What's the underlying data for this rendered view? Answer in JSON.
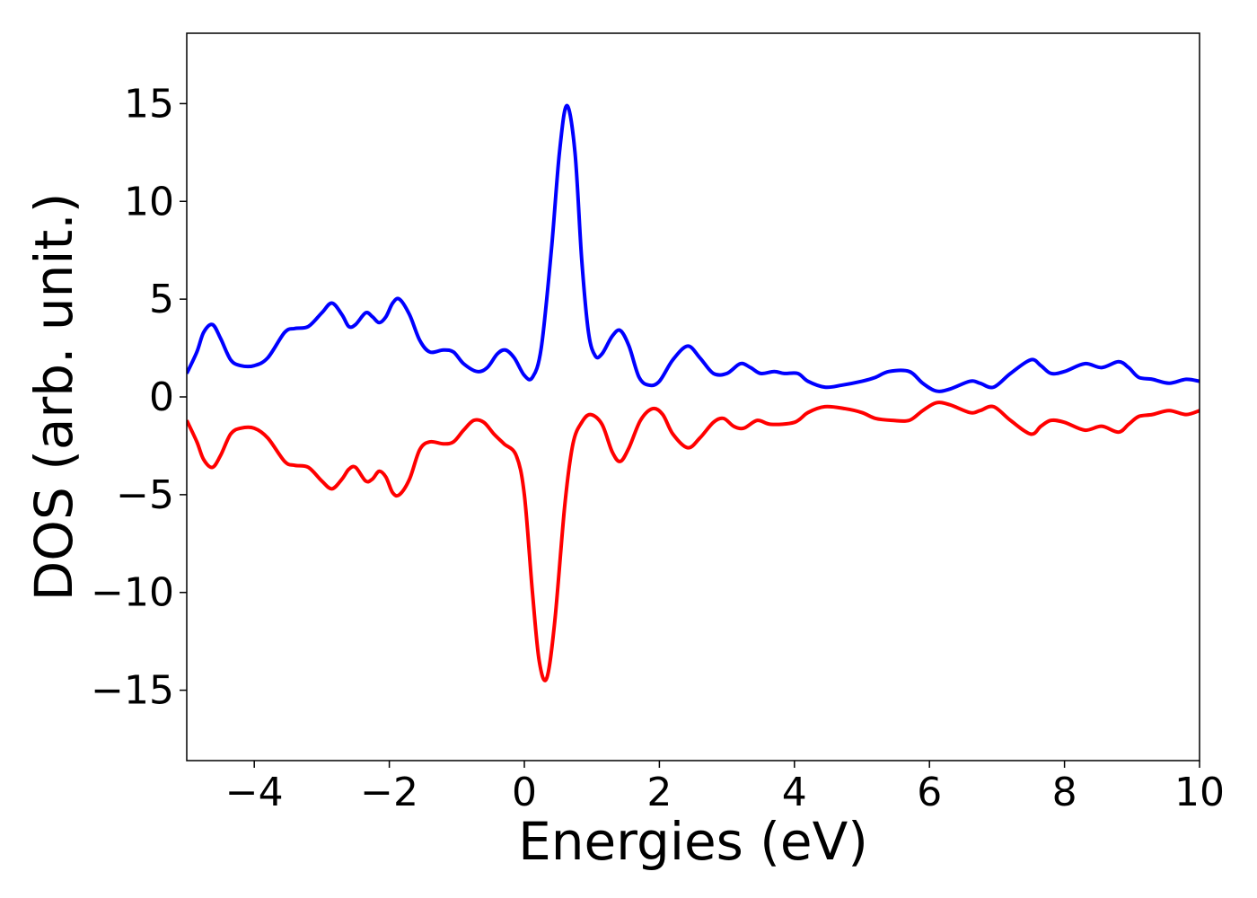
{
  "chart_data": {
    "type": "line",
    "title": "",
    "xlabel": "Energies (eV)",
    "ylabel": "DOS (arb. unit.)",
    "xlim": [
      -5,
      10
    ],
    "ylim": [
      -18.6,
      18.6
    ],
    "grid": false,
    "legend": "none",
    "x_ticks": [
      -4,
      -2,
      0,
      2,
      4,
      6,
      8,
      10
    ],
    "x_tick_labels": [
      "−4",
      "−2",
      "0",
      "2",
      "4",
      "6",
      "8",
      "10"
    ],
    "y_ticks": [
      -15,
      -10,
      -5,
      0,
      5,
      10,
      15
    ],
    "y_tick_labels": [
      "−15",
      "−10",
      "−5",
      "0",
      "5",
      "10",
      "15"
    ],
    "series": [
      {
        "color": "#0000ff",
        "points": [
          [
            -5.0,
            1.2
          ],
          [
            -4.85,
            2.3
          ],
          [
            -4.75,
            3.3
          ],
          [
            -4.62,
            3.7
          ],
          [
            -4.5,
            3.0
          ],
          [
            -4.35,
            1.9
          ],
          [
            -4.2,
            1.6
          ],
          [
            -4.0,
            1.6
          ],
          [
            -3.8,
            2.0
          ],
          [
            -3.55,
            3.3
          ],
          [
            -3.4,
            3.5
          ],
          [
            -3.2,
            3.6
          ],
          [
            -3.0,
            4.3
          ],
          [
            -2.85,
            4.8
          ],
          [
            -2.7,
            4.2
          ],
          [
            -2.6,
            3.6
          ],
          [
            -2.5,
            3.7
          ],
          [
            -2.35,
            4.3
          ],
          [
            -2.25,
            4.1
          ],
          [
            -2.15,
            3.8
          ],
          [
            -2.05,
            4.1
          ],
          [
            -1.95,
            4.8
          ],
          [
            -1.85,
            5.0
          ],
          [
            -1.7,
            4.2
          ],
          [
            -1.55,
            2.9
          ],
          [
            -1.4,
            2.3
          ],
          [
            -1.2,
            2.4
          ],
          [
            -1.05,
            2.3
          ],
          [
            -0.9,
            1.7
          ],
          [
            -0.7,
            1.3
          ],
          [
            -0.55,
            1.5
          ],
          [
            -0.4,
            2.2
          ],
          [
            -0.28,
            2.4
          ],
          [
            -0.15,
            2.0
          ],
          [
            0.0,
            1.1
          ],
          [
            0.12,
            1.0
          ],
          [
            0.25,
            2.5
          ],
          [
            0.4,
            7.5
          ],
          [
            0.52,
            12.5
          ],
          [
            0.63,
            14.9
          ],
          [
            0.75,
            12.5
          ],
          [
            0.85,
            7.0
          ],
          [
            0.95,
            3.3
          ],
          [
            1.05,
            2.1
          ],
          [
            1.15,
            2.2
          ],
          [
            1.3,
            3.1
          ],
          [
            1.42,
            3.4
          ],
          [
            1.55,
            2.6
          ],
          [
            1.7,
            1.0
          ],
          [
            1.85,
            0.6
          ],
          [
            2.0,
            0.8
          ],
          [
            2.2,
            1.9
          ],
          [
            2.42,
            2.6
          ],
          [
            2.6,
            2.0
          ],
          [
            2.8,
            1.2
          ],
          [
            3.0,
            1.2
          ],
          [
            3.2,
            1.7
          ],
          [
            3.35,
            1.5
          ],
          [
            3.5,
            1.2
          ],
          [
            3.7,
            1.3
          ],
          [
            3.85,
            1.2
          ],
          [
            4.05,
            1.2
          ],
          [
            4.2,
            0.8
          ],
          [
            4.45,
            0.5
          ],
          [
            4.7,
            0.6
          ],
          [
            5.0,
            0.8
          ],
          [
            5.2,
            1.0
          ],
          [
            5.4,
            1.3
          ],
          [
            5.7,
            1.3
          ],
          [
            5.9,
            0.7
          ],
          [
            6.1,
            0.3
          ],
          [
            6.3,
            0.4
          ],
          [
            6.6,
            0.8
          ],
          [
            6.75,
            0.7
          ],
          [
            6.95,
            0.5
          ],
          [
            7.2,
            1.2
          ],
          [
            7.5,
            1.9
          ],
          [
            7.65,
            1.6
          ],
          [
            7.8,
            1.2
          ],
          [
            8.0,
            1.3
          ],
          [
            8.3,
            1.7
          ],
          [
            8.55,
            1.5
          ],
          [
            8.8,
            1.8
          ],
          [
            8.95,
            1.5
          ],
          [
            9.1,
            1.0
          ],
          [
            9.3,
            0.9
          ],
          [
            9.55,
            0.7
          ],
          [
            9.8,
            0.9
          ],
          [
            10.0,
            0.8
          ]
        ]
      },
      {
        "color": "#ff0000",
        "points": [
          [
            -5.0,
            -1.2
          ],
          [
            -4.85,
            -2.3
          ],
          [
            -4.75,
            -3.2
          ],
          [
            -4.62,
            -3.6
          ],
          [
            -4.5,
            -3.0
          ],
          [
            -4.35,
            -1.9
          ],
          [
            -4.2,
            -1.6
          ],
          [
            -4.0,
            -1.6
          ],
          [
            -3.8,
            -2.1
          ],
          [
            -3.55,
            -3.3
          ],
          [
            -3.4,
            -3.5
          ],
          [
            -3.2,
            -3.6
          ],
          [
            -3.0,
            -4.3
          ],
          [
            -2.85,
            -4.7
          ],
          [
            -2.7,
            -4.2
          ],
          [
            -2.6,
            -3.7
          ],
          [
            -2.5,
            -3.6
          ],
          [
            -2.35,
            -4.3
          ],
          [
            -2.25,
            -4.2
          ],
          [
            -2.15,
            -3.8
          ],
          [
            -2.05,
            -4.1
          ],
          [
            -1.95,
            -4.9
          ],
          [
            -1.85,
            -5.0
          ],
          [
            -1.7,
            -4.2
          ],
          [
            -1.55,
            -2.7
          ],
          [
            -1.4,
            -2.3
          ],
          [
            -1.2,
            -2.4
          ],
          [
            -1.05,
            -2.3
          ],
          [
            -0.9,
            -1.7
          ],
          [
            -0.75,
            -1.2
          ],
          [
            -0.6,
            -1.3
          ],
          [
            -0.45,
            -1.9
          ],
          [
            -0.3,
            -2.4
          ],
          [
            -0.12,
            -3.0
          ],
          [
            0.0,
            -5.0
          ],
          [
            0.12,
            -10.0
          ],
          [
            0.22,
            -13.5
          ],
          [
            0.33,
            -14.4
          ],
          [
            0.45,
            -11.5
          ],
          [
            0.6,
            -5.5
          ],
          [
            0.72,
            -2.4
          ],
          [
            0.85,
            -1.3
          ],
          [
            0.98,
            -0.9
          ],
          [
            1.15,
            -1.4
          ],
          [
            1.3,
            -2.8
          ],
          [
            1.42,
            -3.3
          ],
          [
            1.55,
            -2.6
          ],
          [
            1.72,
            -1.2
          ],
          [
            1.9,
            -0.6
          ],
          [
            2.05,
            -0.9
          ],
          [
            2.2,
            -1.9
          ],
          [
            2.42,
            -2.6
          ],
          [
            2.6,
            -2.1
          ],
          [
            2.8,
            -1.3
          ],
          [
            2.95,
            -1.1
          ],
          [
            3.1,
            -1.5
          ],
          [
            3.25,
            -1.6
          ],
          [
            3.45,
            -1.2
          ],
          [
            3.65,
            -1.4
          ],
          [
            4.0,
            -1.3
          ],
          [
            4.2,
            -0.8
          ],
          [
            4.45,
            -0.5
          ],
          [
            4.75,
            -0.6
          ],
          [
            5.0,
            -0.8
          ],
          [
            5.2,
            -1.1
          ],
          [
            5.45,
            -1.2
          ],
          [
            5.7,
            -1.2
          ],
          [
            5.9,
            -0.7
          ],
          [
            6.1,
            -0.3
          ],
          [
            6.3,
            -0.4
          ],
          [
            6.6,
            -0.8
          ],
          [
            6.75,
            -0.7
          ],
          [
            6.95,
            -0.5
          ],
          [
            7.2,
            -1.2
          ],
          [
            7.5,
            -1.9
          ],
          [
            7.65,
            -1.5
          ],
          [
            7.8,
            -1.2
          ],
          [
            8.0,
            -1.3
          ],
          [
            8.3,
            -1.7
          ],
          [
            8.55,
            -1.5
          ],
          [
            8.8,
            -1.8
          ],
          [
            8.95,
            -1.4
          ],
          [
            9.1,
            -1.0
          ],
          [
            9.3,
            -0.9
          ],
          [
            9.55,
            -0.7
          ],
          [
            9.8,
            -0.9
          ],
          [
            10.0,
            -0.7
          ]
        ]
      }
    ]
  }
}
